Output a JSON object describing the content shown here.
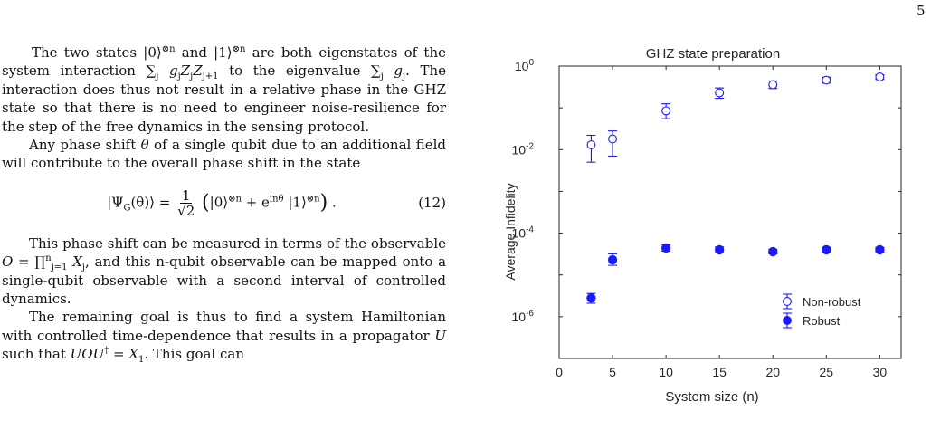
{
  "page": {
    "number": "5"
  },
  "body": {
    "p1": [
      "The two states |0⟩",
      "⊗n",
      " and |1⟩",
      "⊗n",
      " are both eigenstates of the system interaction ∑",
      "j",
      " g",
      "j",
      "Z",
      "j",
      "Z",
      "j+1",
      " to the eigenvalue ∑",
      "j",
      " g",
      "j",
      ". The interaction does thus not result in a relative phase in the GHZ state so that there is no need to engineer noise-resilience for the step of the free dynamics in the sensing protocol."
    ],
    "p2": [
      "Any phase shift ",
      "θ",
      " of a single qubit due to an additional field will contribute to the overall phase shift in the state"
    ],
    "equation": {
      "lhs": "|Ψ",
      "lhs_sub": "G",
      "lhs_rest": "(θ)⟩ =",
      "frac_num": "1",
      "frac_den": "√2",
      "paren_open": "(",
      "term1": "|0⟩",
      "term1_sup": "⊗n",
      "plus": " + e",
      "exp": "inθ",
      "term2": " |1⟩",
      "term2_sup": "⊗n",
      "paren_close": ")",
      "period": " .",
      "number": "(12)"
    },
    "p3": [
      "This phase shift can be measured in terms of the observable ",
      "O",
      " = ∏",
      "n",
      "j=1",
      " X",
      "j",
      ", and this n-qubit observable can be mapped onto a single-qubit observable with a second interval of controlled dynamics."
    ],
    "p4": [
      "The remaining goal is thus to find a system Hamiltonian with controlled time-dependence that results in a propagator ",
      "U",
      " such that ",
      "UOU",
      "†",
      " = X",
      "1",
      ". This goal can"
    ]
  },
  "chart_data": {
    "type": "scatter",
    "title": "GHZ state preparation",
    "xlabel": "System size (n)",
    "ylabel": "Average Infidelity",
    "x_ticks": [
      "0",
      "5",
      "10",
      "15",
      "20",
      "25",
      "30"
    ],
    "y_ticks": [
      {
        "base": "10",
        "exp": "0"
      },
      {
        "base": "10",
        "exp": "-2"
      },
      {
        "base": "10",
        "exp": "-4"
      },
      {
        "base": "10",
        "exp": "-6"
      }
    ],
    "xlim": [
      0,
      32
    ],
    "ylim": [
      1e-07,
      1
    ],
    "yscale": "log",
    "grid": false,
    "legend_position": "bottom-right",
    "color": "#1a1aff",
    "series": [
      {
        "name": "Non-robust",
        "marker": "open-circle",
        "points": [
          {
            "x": 3,
            "y": 0.013,
            "lo": 0.005,
            "hi": 0.022
          },
          {
            "x": 5,
            "y": 0.018,
            "lo": 0.007,
            "hi": 0.028
          },
          {
            "x": 10,
            "y": 0.085,
            "lo": 0.055,
            "hi": 0.125
          },
          {
            "x": 15,
            "y": 0.23,
            "lo": 0.17,
            "hi": 0.3
          },
          {
            "x": 20,
            "y": 0.36,
            "lo": 0.29,
            "hi": 0.44
          },
          {
            "x": 25,
            "y": 0.46,
            "lo": 0.39,
            "hi": 0.54
          },
          {
            "x": 30,
            "y": 0.55,
            "lo": 0.48,
            "hi": 0.62
          }
        ]
      },
      {
        "name": "Robust",
        "marker": "filled-circle",
        "points": [
          {
            "x": 3,
            "y": 2.8e-06,
            "lo": 2.1e-06,
            "hi": 3.6e-06
          },
          {
            "x": 5,
            "y": 2.3e-05,
            "lo": 1.7e-05,
            "hi": 3.2e-05
          },
          {
            "x": 10,
            "y": 4.4e-05,
            "lo": 3.7e-05,
            "hi": 5.3e-05
          },
          {
            "x": 15,
            "y": 4e-05,
            "lo": 3.4e-05,
            "hi": 4.7e-05
          },
          {
            "x": 20,
            "y": 3.6e-05,
            "lo": 3.2e-05,
            "hi": 4.1e-05
          },
          {
            "x": 25,
            "y": 4e-05,
            "lo": 3.5e-05,
            "hi": 4.6e-05
          },
          {
            "x": 30,
            "y": 4e-05,
            "lo": 3.5e-05,
            "hi": 4.6e-05
          }
        ]
      }
    ]
  }
}
